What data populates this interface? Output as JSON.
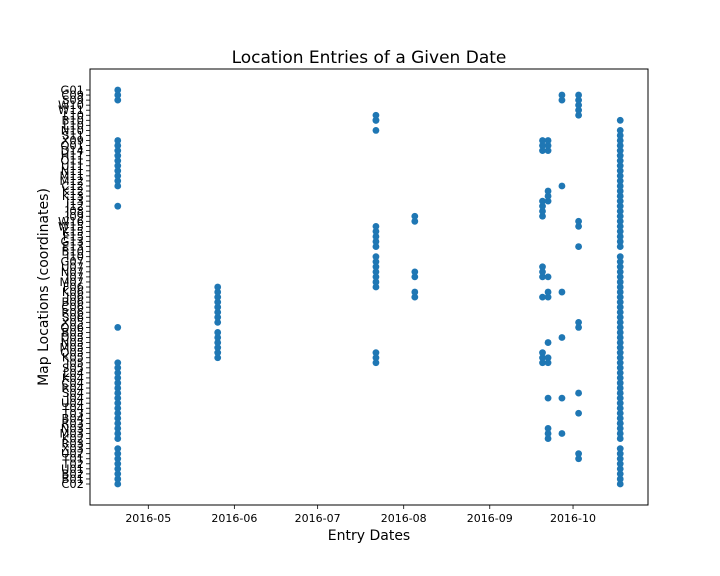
{
  "chart_data": {
    "type": "scatter",
    "title": "Location Entries of a Given Date",
    "xlabel": "Entry Dates",
    "ylabel": "Map Locations (coordinates)",
    "xlim": [
      "2016-04-10",
      "2016-10-28"
    ],
    "x_ticks": [
      "2016-05",
      "2016-06",
      "2016-07",
      "2016-08",
      "2016-09",
      "2016-10"
    ],
    "y_ticks": [
      "C02",
      "B01",
      "B02",
      "U01",
      "T02",
      "T01",
      "U02",
      "X03",
      "R03",
      "K02",
      "M03",
      "N03",
      "R03",
      "B04",
      "T03",
      "T04",
      "U04",
      "J04",
      "S04",
      "R04",
      "C04",
      "K04",
      "L04",
      "S05",
      "J05",
      "K05",
      "Q05",
      "M05",
      "N05",
      "D05",
      "B05",
      "Q06",
      "X05",
      "S06",
      "R06",
      "C06",
      "B06",
      "J06",
      "K06",
      "F06",
      "M07",
      "J07",
      "N07",
      "U07",
      "G07",
      "I10",
      "B10",
      "E13",
      "G13",
      "F15",
      "K15",
      "W15",
      "W16",
      "J09",
      "J08",
      "J12",
      "J13",
      "K13",
      "K12",
      "C12",
      "M12",
      "M11",
      "N11",
      "U11",
      "O11",
      "H11",
      "D14",
      "Q01",
      "X09",
      "S11",
      "N10",
      "L10",
      "B10",
      "L10",
      "W11",
      "W10",
      "S09",
      "C09",
      "G01"
    ],
    "series": [
      {
        "dates": [
          "2016-04-20"
        ],
        "locations": [
          "C02",
          "B01",
          "B02",
          "U01",
          "T02",
          "T01",
          "U02",
          "X03",
          "R03",
          "K02",
          "M03",
          "N03",
          "B04",
          "T03",
          "T04",
          "U04",
          "J04",
          "S04",
          "R04",
          "C04",
          "K04",
          "L04",
          "S05",
          "J05"
        ]
      },
      {
        "dates": [
          "2016-04-20"
        ],
        "locations": [
          "Q06"
        ]
      },
      {
        "dates": [
          "2016-04-20"
        ],
        "locations": [
          "J12"
        ]
      },
      {
        "dates": [
          "2016-04-20"
        ],
        "locations": [
          "C12",
          "M12",
          "M11",
          "N11",
          "U11",
          "O11",
          "H11",
          "D14",
          "Q01",
          "X09"
        ]
      },
      {
        "dates": [
          "2016-04-20"
        ],
        "locations": [
          "S09",
          "C09",
          "G01"
        ]
      },
      {
        "dates": [
          "2016-05-26"
        ],
        "locations": [
          "K05",
          "Q05",
          "M05",
          "N05",
          "D05",
          "B05",
          "X05",
          "S06",
          "R06",
          "C06",
          "B06",
          "J06",
          "K06",
          "F06"
        ]
      },
      {
        "dates": [
          "2016-07-22"
        ],
        "locations": [
          "J05",
          "K05",
          "Q05"
        ]
      },
      {
        "dates": [
          "2016-07-22"
        ],
        "locations": [
          "F06",
          "M07",
          "J07",
          "N07",
          "U07",
          "G07",
          "I10",
          "B10",
          "E13",
          "G13",
          "F15",
          "K15",
          "W15"
        ]
      },
      {
        "dates": [
          "2016-07-22"
        ],
        "locations": [
          "N10",
          "L10",
          "B10"
        ]
      },
      {
        "dates": [
          "2016-08-05"
        ],
        "locations": [
          "J07",
          "N07",
          "J06",
          "K06",
          "W16",
          "J09"
        ]
      },
      {
        "dates": [
          "2016-09-20"
        ],
        "locations": [
          "J05",
          "K05",
          "Q05",
          "J07",
          "J06",
          "N07",
          "U07",
          "J09",
          "J08",
          "J12",
          "J13",
          "D14",
          "Q01",
          "X09"
        ]
      },
      {
        "dates": [
          "2016-09-22"
        ],
        "locations": [
          "K02",
          "M03",
          "N03",
          "J04",
          "J05",
          "K05",
          "N05",
          "J07",
          "J06",
          "K06",
          "J13",
          "K13",
          "K12",
          "D14",
          "Q01",
          "X09"
        ]
      },
      {
        "dates": [
          "2016-09-27"
        ],
        "locations": [
          "M03",
          "J04",
          "D05",
          "K06",
          "C12"
        ]
      },
      {
        "dates": [
          "2016-09-27"
        ],
        "locations": [
          "S09",
          "C09"
        ]
      },
      {
        "dates": [
          "2016-10-03"
        ],
        "locations": [
          "T01",
          "U02",
          "T03",
          "S04",
          "X05",
          "Q06",
          "W15",
          "W16",
          "E13",
          "L10",
          "W11",
          "W10",
          "S09",
          "C09"
        ]
      },
      {
        "dates": [
          "2016-10-18"
        ],
        "locations": [
          "C02",
          "B01",
          "B02",
          "U01",
          "T02",
          "T01",
          "U02",
          "X03",
          "R03",
          "K02",
          "M03",
          "N03",
          "R03",
          "B04",
          "T03",
          "T04",
          "U04",
          "J04",
          "S04",
          "R04",
          "C04",
          "K04",
          "L04",
          "S05",
          "J05",
          "K05",
          "Q05",
          "M05",
          "N05",
          "D05",
          "B05",
          "Q06",
          "X05",
          "S06",
          "R06",
          "C06",
          "B06",
          "J06",
          "K06",
          "F06",
          "M07",
          "J07",
          "N07",
          "U07",
          "G07",
          "I10",
          "B10",
          "E13",
          "G13",
          "F15",
          "K15",
          "W15",
          "W16",
          "J09",
          "J08",
          "J12",
          "J13",
          "K13",
          "K12",
          "C12",
          "M12",
          "M11",
          "N11",
          "U11",
          "O11",
          "H11",
          "D14",
          "Q01",
          "X09",
          "S11",
          "N10"
        ]
      }
    ],
    "marker_color": "#1f77b4",
    "grid": false,
    "legend": "none"
  }
}
